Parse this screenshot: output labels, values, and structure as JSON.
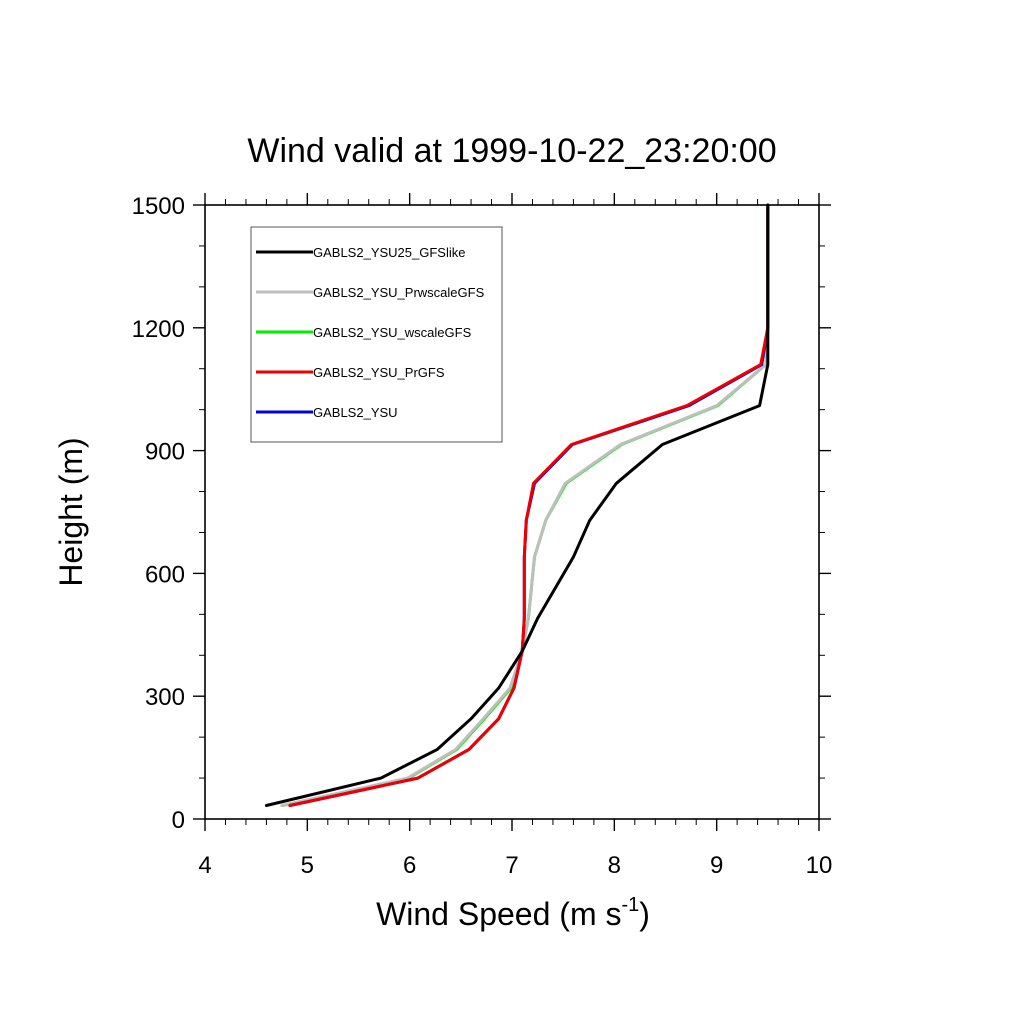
{
  "chart_data": {
    "type": "line",
    "title": "Wind valid at 1999-10-22_23:20:00",
    "xlabel": "Wind Speed (m s",
    "xlabel_sup": "-1",
    "xlabel_close": ")",
    "ylabel": "Height (m)",
    "xlim": [
      4,
      10
    ],
    "ylim": [
      0,
      1500
    ],
    "x_ticks": [
      "4",
      "5",
      "6",
      "7",
      "8",
      "9",
      "10"
    ],
    "y_ticks": [
      "0",
      "300",
      "600",
      "900",
      "1200",
      "1500"
    ],
    "legend_position": "top-left",
    "series": [
      {
        "name": "GABLS2_YSU25_GFSlike",
        "color": "#000000",
        "x": [
          4.6,
          5.72,
          6.27,
          6.6,
          6.87,
          7.1,
          7.25,
          7.6,
          7.76,
          8.02,
          8.47,
          9.42,
          9.5,
          9.5,
          9.5
        ],
        "y": [
          33,
          100,
          170,
          245,
          320,
          410,
          490,
          640,
          730,
          820,
          915,
          1010,
          1110,
          1200,
          1500
        ]
      },
      {
        "name": "GABLS2_YSU_PrwscaleGFS",
        "color": "#bebebe",
        "x": [
          4.75,
          5.98,
          6.45,
          6.72,
          6.98,
          7.1,
          7.16,
          7.22,
          7.33,
          7.52,
          8.06,
          9.0,
          9.48,
          9.5,
          9.5
        ],
        "y": [
          33,
          100,
          170,
          245,
          320,
          410,
          490,
          640,
          730,
          820,
          915,
          1010,
          1110,
          1200,
          1500
        ]
      },
      {
        "name": "GABLS2_YSU_wscaleGFS",
        "color": "#00ee00",
        "x": [
          4.76,
          5.99,
          6.46,
          6.73,
          6.99,
          7.1,
          7.16,
          7.22,
          7.33,
          7.53,
          8.07,
          9.01,
          9.48,
          9.5,
          9.5
        ],
        "y": [
          33,
          100,
          170,
          245,
          320,
          410,
          490,
          640,
          730,
          820,
          915,
          1010,
          1110,
          1200,
          1500
        ]
      },
      {
        "name": "GABLS2_YSU_PrGFS",
        "color": "#ee0000",
        "x": [
          4.83,
          6.08,
          6.58,
          6.87,
          7.02,
          7.1,
          7.12,
          7.12,
          7.14,
          7.21,
          7.58,
          8.71,
          9.43,
          9.5,
          9.5
        ],
        "y": [
          33,
          100,
          170,
          245,
          320,
          410,
          490,
          640,
          730,
          820,
          915,
          1010,
          1110,
          1200,
          1500
        ]
      },
      {
        "name": "GABLS2_YSU",
        "color": "#0000dd",
        "x": [
          4.83,
          6.08,
          6.58,
          6.87,
          7.02,
          7.1,
          7.12,
          7.12,
          7.14,
          7.22,
          7.59,
          8.73,
          9.44,
          9.5,
          9.5
        ],
        "y": [
          33,
          100,
          170,
          245,
          320,
          410,
          490,
          640,
          730,
          820,
          915,
          1010,
          1110,
          1200,
          1500
        ]
      }
    ]
  }
}
